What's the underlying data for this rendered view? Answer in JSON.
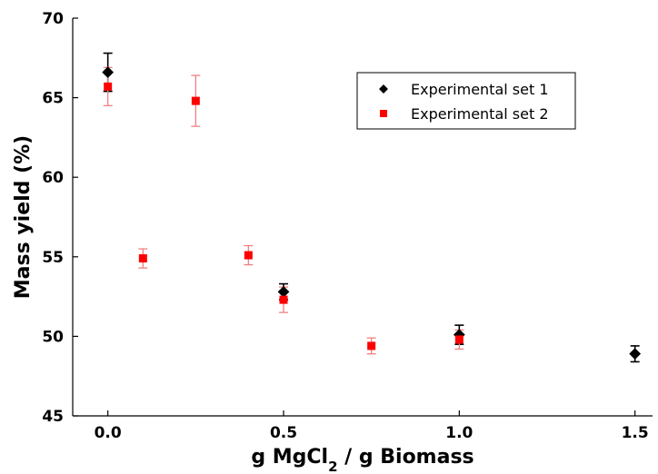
{
  "chart_data": {
    "type": "scatter",
    "title": "",
    "xlabel": {
      "prefix": "g MgCl",
      "subscript": "2",
      "suffix": " / g Biomass"
    },
    "ylabel": "Mass yield (%)",
    "xlim": [
      -0.1,
      1.55
    ],
    "ylim": [
      45,
      70
    ],
    "x_ticks": [
      0.0,
      0.5,
      1.0,
      1.5
    ],
    "x_tick_labels": [
      "0.0",
      "0.5",
      "1.0",
      "1.5"
    ],
    "y_ticks": [
      45,
      50,
      55,
      60,
      65,
      70
    ],
    "y_tick_labels": [
      "45",
      "50",
      "55",
      "60",
      "65",
      "70"
    ],
    "grid": false,
    "legend_position": "top-right",
    "series": [
      {
        "name": "Experimental set 1",
        "marker": "diamond",
        "color": "#000000",
        "errorbar_color": "#000000",
        "points": [
          {
            "x": 0.0,
            "y": 66.6,
            "err": 1.2
          },
          {
            "x": 0.5,
            "y": 52.8,
            "err": 0.5
          },
          {
            "x": 1.0,
            "y": 50.1,
            "err": 0.6
          },
          {
            "x": 1.5,
            "y": 48.9,
            "err": 0.5
          }
        ]
      },
      {
        "name": "Experimental set 2",
        "marker": "square",
        "color": "#ff0000",
        "errorbar_color": "#f08080",
        "points": [
          {
            "x": 0.0,
            "y": 65.7,
            "err": 1.2
          },
          {
            "x": 0.1,
            "y": 54.9,
            "err": 0.6
          },
          {
            "x": 0.25,
            "y": 64.8,
            "err": 1.6
          },
          {
            "x": 0.4,
            "y": 55.1,
            "err": 0.6
          },
          {
            "x": 0.5,
            "y": 52.3,
            "err": 0.8
          },
          {
            "x": 0.75,
            "y": 49.4,
            "err": 0.5
          },
          {
            "x": 1.0,
            "y": 49.8,
            "err": 0.6
          }
        ]
      }
    ]
  }
}
